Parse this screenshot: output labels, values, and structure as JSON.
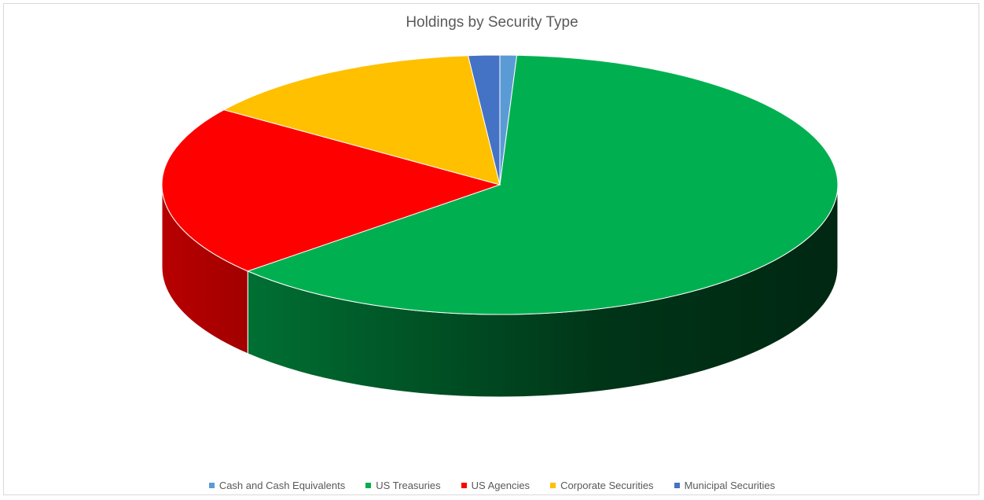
{
  "chart_data": {
    "type": "pie",
    "title": "Holdings by Security Type",
    "categories": [
      "Cash and Cash Equivalents",
      "US Treasuries",
      "US Agencies",
      "Corporate Securities",
      "Municipal Securities"
    ],
    "values": [
      0.8,
      62.6,
      21.4,
      13.7,
      1.5
    ],
    "colors": [
      "#5b9bd5",
      "#00b050",
      "#ff0000",
      "#ffc000",
      "#4472c4"
    ],
    "start_at": "top",
    "direction": "clockwise",
    "style": "3d",
    "legend": "bottom"
  }
}
